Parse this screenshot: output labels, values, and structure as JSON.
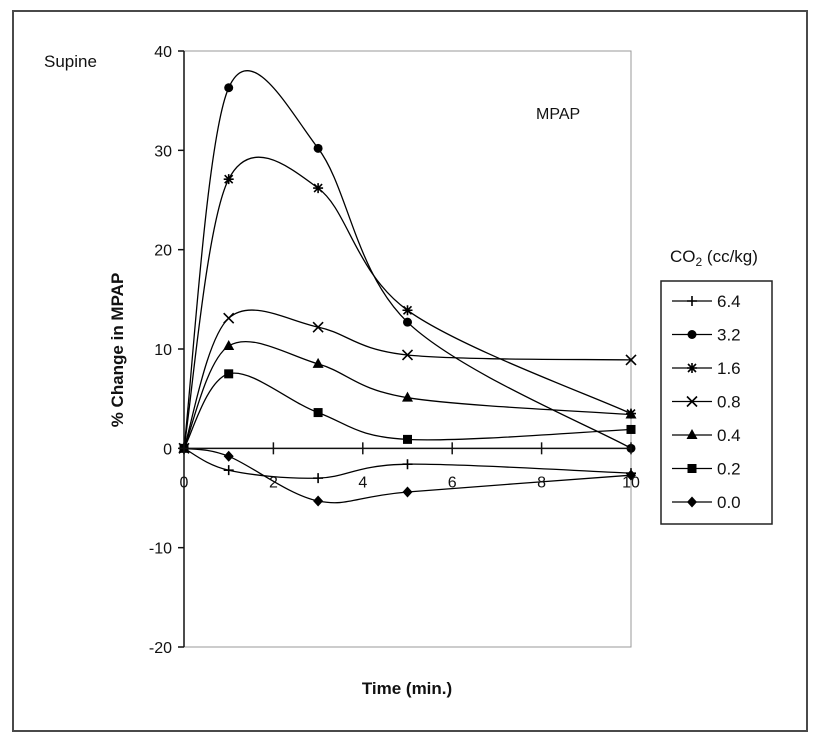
{
  "chart_data": {
    "type": "line",
    "panel_label": "Supine",
    "annotation": "MPAP",
    "xlabel": "Time (min.)",
    "ylabel": "% Change in MPAP",
    "xlim": [
      0,
      10
    ],
    "ylim": [
      -20,
      40
    ],
    "x_ticks": [
      "0",
      "2",
      "4",
      "6",
      "8",
      "10"
    ],
    "y_ticks": [
      "40",
      "30",
      "20",
      "10",
      "0",
      "-10",
      "-20"
    ],
    "grid": false,
    "legend_position": "right",
    "legend_title_prefix": "CO",
    "legend_title_sub": "2",
    "legend_title_suffix": " (cc/kg)",
    "x": [
      0,
      1,
      3,
      5,
      10
    ],
    "series": [
      {
        "name": "6.4",
        "marker": "plus",
        "values": [
          0,
          -2.2,
          -3.0,
          -1.6,
          -2.5
        ]
      },
      {
        "name": "3.2",
        "marker": "circle",
        "values": [
          0,
          36.3,
          30.2,
          12.7,
          0
        ]
      },
      {
        "name": "1.6",
        "marker": "star",
        "values": [
          0,
          27.1,
          26.2,
          13.9,
          3.5
        ]
      },
      {
        "name": "0.8",
        "marker": "x",
        "values": [
          0,
          13.1,
          12.2,
          9.4,
          8.9
        ]
      },
      {
        "name": "0.4",
        "marker": "triangle",
        "values": [
          0,
          10.3,
          8.5,
          5.1,
          3.4
        ]
      },
      {
        "name": "0.2",
        "marker": "square",
        "values": [
          0,
          7.5,
          3.6,
          0.9,
          1.9
        ]
      },
      {
        "name": "0.0",
        "marker": "diamond",
        "values": [
          0,
          -0.8,
          -5.3,
          -4.4,
          -2.7
        ]
      }
    ]
  }
}
